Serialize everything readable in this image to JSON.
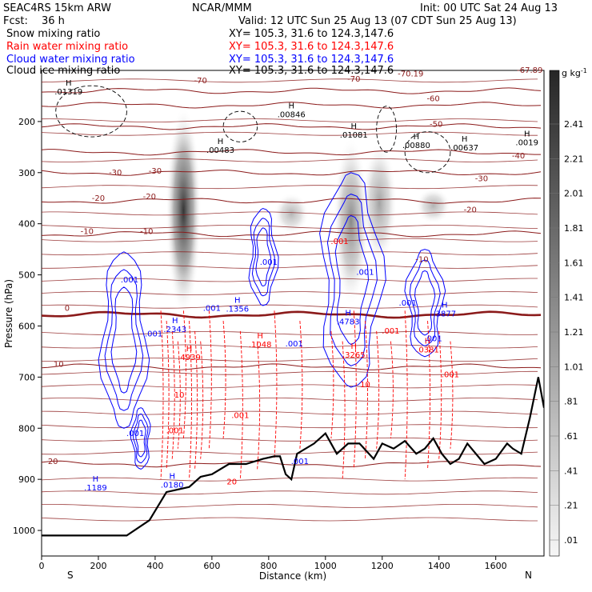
{
  "header": {
    "model": "SEAC4RS 15km ARW",
    "center": "NCAR/MMM",
    "init": "Init: 00 UTC Sat 24 Aug 13",
    "fcst_label": "Fcst:",
    "fcst_value": "36 h",
    "valid": "Valid: 12 UTC Sun 25 Aug 13 (07 CDT Sun 25 Aug 13)"
  },
  "fields": [
    {
      "name": "Snow mixing ratio",
      "xy": "XY= 105.3, 31.6 to 124.3,147.6",
      "color": "#000000"
    },
    {
      "name": "Rain water mixing ratio",
      "xy": "XY= 105.3, 31.6 to 124.3,147.6",
      "color": "#ff0000"
    },
    {
      "name": "Cloud water mixing ratio",
      "xy": "XY= 105.3, 31.6 to 124.3,147.6",
      "color": "#0000ff"
    },
    {
      "name": "Cloud ice mixing ratio",
      "xy": "XY= 105.3, 31.6 to 124.3,147.6",
      "color": "#000000"
    }
  ],
  "chart_data": {
    "type": "heatmap",
    "xlabel": "Distance (km)",
    "ylabel": "Pressure (hPa)",
    "xlim": [
      0,
      1770
    ],
    "ylim": [
      1050,
      100
    ],
    "x_ticks": [
      0,
      200,
      400,
      600,
      800,
      1000,
      1200,
      1400,
      1600
    ],
    "y_ticks": [
      200,
      300,
      400,
      500,
      600,
      700,
      800,
      900,
      1000
    ],
    "x_end_labels": {
      "left": "S",
      "right": "N"
    },
    "colorbar": {
      "unit": "g kg",
      "unit_exp": "-1",
      "labels": [
        "2.41",
        "2.21",
        "2.01",
        "1.81",
        "1.61",
        "1.41",
        "1.21",
        "1.01",
        ".81",
        ".61",
        ".41",
        ".21",
        ".01"
      ]
    },
    "snow_shading": [
      {
        "x": 500,
        "p_top": 170,
        "p_bot": 580,
        "max": 2.41
      },
      {
        "x": 1090,
        "p_top": 230,
        "p_bot": 560,
        "max": 0.8
      },
      {
        "x": 1190,
        "p_top": 240,
        "p_bot": 480,
        "max": 0.5
      },
      {
        "x": 880,
        "p_top": 340,
        "p_bot": 420,
        "max": 0.3
      },
      {
        "x": 1380,
        "p_top": 330,
        "p_bot": 400,
        "max": 0.3
      }
    ],
    "temperature_contours": [
      {
        "label": "-70",
        "p": 140
      },
      {
        "label": "-60",
        "p": 168
      },
      {
        "label": "-50",
        "p": 210
      },
      {
        "label": "-40",
        "p": 260
      },
      {
        "label": "-30",
        "p": 300
      },
      {
        "label": "-20",
        "p": 355
      },
      {
        "label": "-10",
        "p": 420
      },
      {
        "label": "0",
        "p": 578
      },
      {
        "label": "10",
        "p": 680
      },
      {
        "label": "20",
        "p": 870
      }
    ],
    "contour_labels": [
      {
        "text": "-70",
        "x": 560,
        "p": 125
      },
      {
        "text": "-70",
        "x": 1100,
        "p": 122
      },
      {
        "text": "-70.19",
        "x": 1300,
        "p": 112
      },
      {
        "text": "-67.89",
        "x": 1720,
        "p": 105
      },
      {
        "text": "-60",
        "x": 1380,
        "p": 160
      },
      {
        "text": "-50",
        "x": 1390,
        "p": 210
      },
      {
        "text": "-40",
        "x": 1680,
        "p": 272
      },
      {
        "text": "-30",
        "x": 260,
        "p": 305
      },
      {
        "text": "-30",
        "x": 400,
        "p": 302
      },
      {
        "text": "-30",
        "x": 1550,
        "p": 317
      },
      {
        "text": "-20",
        "x": 200,
        "p": 355
      },
      {
        "text": "-20",
        "x": 380,
        "p": 352
      },
      {
        "text": "-20",
        "x": 1510,
        "p": 378
      },
      {
        "text": "-10",
        "x": 160,
        "p": 420
      },
      {
        "text": "-10",
        "x": 370,
        "p": 420
      },
      {
        "text": "-10",
        "x": 1340,
        "p": 475
      },
      {
        "text": "0",
        "x": 90,
        "p": 570
      },
      {
        "text": "10",
        "x": 60,
        "p": 680
      },
      {
        "text": "20",
        "x": 40,
        "p": 870
      }
    ],
    "cloud_water_regions": [
      {
        "label": ".001",
        "x": 290,
        "p": 585,
        "w": 150,
        "top": 455,
        "bot": 800
      },
      {
        "label": ".001",
        "x": 780,
        "p": 470,
        "w": 90,
        "top": 370,
        "bot": 560
      },
      {
        "label": ".001",
        "x": 1090,
        "p": 540,
        "w": 200,
        "top": 300,
        "bot": 720
      },
      {
        "label": ".001",
        "x": 1350,
        "p": 620,
        "w": 120,
        "top": 450,
        "bot": 660
      },
      {
        "label": ".001",
        "x": 350,
        "p": 820,
        "w": 60,
        "top": 760,
        "bot": 880
      }
    ],
    "highs": [
      {
        "letter": "H",
        "value": ".01319",
        "x": 95,
        "p": 145,
        "color": "#000000"
      },
      {
        "letter": "H",
        "value": ".00483",
        "x": 630,
        "p": 260,
        "color": "#000000"
      },
      {
        "letter": "H",
        "value": ".00846",
        "x": 880,
        "p": 190,
        "color": "#000000"
      },
      {
        "letter": "H",
        "value": ".01081",
        "x": 1100,
        "p": 230,
        "color": "#000000"
      },
      {
        "letter": "H",
        "value": ".00880",
        "x": 1320,
        "p": 250,
        "color": "#000000"
      },
      {
        "letter": "H",
        "value": ".00637",
        "x": 1490,
        "p": 255,
        "color": "#000000"
      },
      {
        "letter": "H",
        "value": ".0019",
        "x": 1710,
        "p": 245,
        "color": "#000000"
      },
      {
        "letter": "H",
        "value": ".1356",
        "x": 690,
        "p": 570,
        "color": "#0000ff"
      },
      {
        "letter": "H",
        "value": ".2343",
        "x": 470,
        "p": 610,
        "color": "#0000ff"
      },
      {
        "letter": "H",
        "value": ".4783",
        "x": 1080,
        "p": 595,
        "color": "#0000ff"
      },
      {
        "letter": "H",
        "value": ".3877",
        "x": 1420,
        "p": 580,
        "color": "#0000ff"
      },
      {
        "letter": "H",
        "value": ".1189",
        "x": 190,
        "p": 920,
        "color": "#0000ff"
      },
      {
        "letter": "H",
        "value": ".0180",
        "x": 460,
        "p": 915,
        "color": "#0000ff"
      },
      {
        "letter": "H",
        "value": ".4939",
        "x": 520,
        "p": 665,
        "color": "#ff0000"
      },
      {
        "letter": "H",
        "value": ".1048",
        "x": 770,
        "p": 640,
        "color": "#ff0000"
      },
      {
        "letter": "H",
        "value": ".3265",
        "x": 1100,
        "p": 660,
        "color": "#ff0000"
      },
      {
        "letter": "H",
        "value": ".0381",
        "x": 1360,
        "p": 650,
        "color": "#ff0000"
      }
    ],
    "small_labels": [
      {
        "text": ".001",
        "x": 395,
        "p": 620,
        "color": "#0000ff"
      },
      {
        "text": ".001",
        "x": 310,
        "p": 515,
        "color": "#0000ff"
      },
      {
        "text": ".001",
        "x": 800,
        "p": 480,
        "color": "#0000ff"
      },
      {
        "text": ".001",
        "x": 1140,
        "p": 500,
        "color": "#0000ff"
      },
      {
        "text": ".001",
        "x": 1290,
        "p": 560,
        "color": "#0000ff"
      },
      {
        "text": ".001",
        "x": 1380,
        "p": 630,
        "color": "#0000ff"
      },
      {
        "text": ".001",
        "x": 890,
        "p": 640,
        "color": "#0000ff"
      },
      {
        "text": ".001",
        "x": 910,
        "p": 870,
        "color": "#0000ff"
      },
      {
        "text": ".001",
        "x": 330,
        "p": 815,
        "color": "#0000ff"
      },
      {
        "text": ".001",
        "x": 600,
        "p": 570,
        "color": "#0000ff"
      },
      {
        "text": ".001",
        "x": 470,
        "p": 810,
        "color": "#ff0000"
      },
      {
        "text": ".001",
        "x": 700,
        "p": 780,
        "color": "#ff0000"
      },
      {
        "text": ".001",
        "x": 1050,
        "p": 440,
        "color": "#ff0000"
      },
      {
        "text": ".001",
        "x": 1440,
        "p": 700,
        "color": "#ff0000"
      },
      {
        "text": ".001",
        "x": 1230,
        "p": 615,
        "color": "#ff0000"
      },
      {
        "text": "10",
        "x": 485,
        "p": 740,
        "color": "#ff0000"
      },
      {
        "text": "10",
        "x": 1140,
        "p": 720,
        "color": "#ff0000"
      },
      {
        "text": "20",
        "x": 670,
        "p": 910,
        "color": "#ff0000"
      }
    ],
    "terrain": [
      [
        0,
        1010
      ],
      [
        300,
        1010
      ],
      [
        380,
        980
      ],
      [
        440,
        925
      ],
      [
        520,
        915
      ],
      [
        560,
        895
      ],
      [
        600,
        890
      ],
      [
        660,
        870
      ],
      [
        720,
        870
      ],
      [
        780,
        860
      ],
      [
        820,
        855
      ],
      [
        840,
        855
      ],
      [
        860,
        890
      ],
      [
        880,
        900
      ],
      [
        900,
        850
      ],
      [
        960,
        830
      ],
      [
        1000,
        810
      ],
      [
        1040,
        850
      ],
      [
        1080,
        830
      ],
      [
        1120,
        830
      ],
      [
        1170,
        860
      ],
      [
        1200,
        830
      ],
      [
        1240,
        840
      ],
      [
        1280,
        825
      ],
      [
        1320,
        850
      ],
      [
        1350,
        840
      ],
      [
        1380,
        820
      ],
      [
        1410,
        850
      ],
      [
        1440,
        870
      ],
      [
        1470,
        860
      ],
      [
        1500,
        830
      ],
      [
        1560,
        870
      ],
      [
        1600,
        860
      ],
      [
        1640,
        830
      ],
      [
        1660,
        840
      ],
      [
        1690,
        850
      ],
      [
        1720,
        780
      ],
      [
        1750,
        700
      ],
      [
        1770,
        760
      ]
    ]
  }
}
